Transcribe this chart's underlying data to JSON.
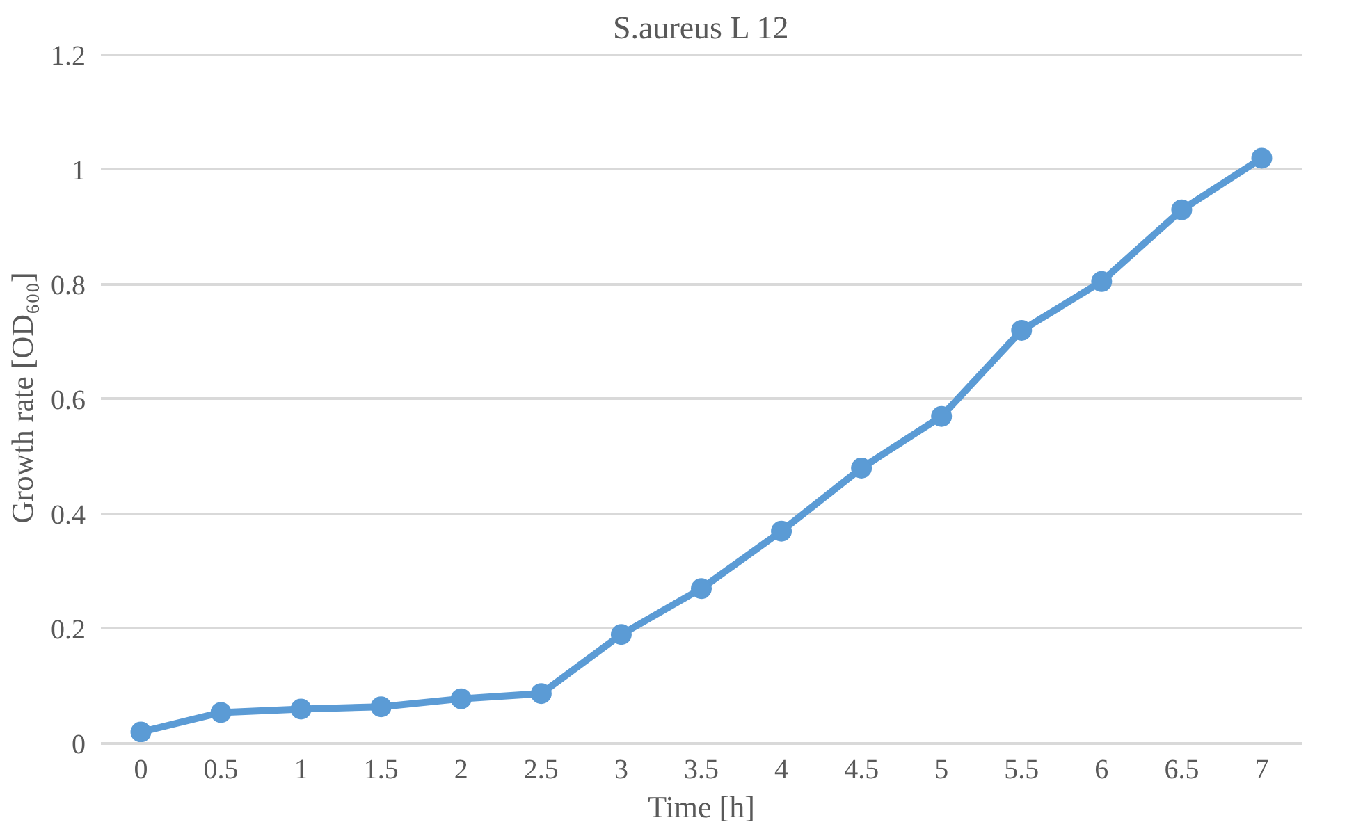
{
  "chart_data": {
    "type": "line",
    "title": "S.aureus L 12",
    "xlabel": "Time [h]",
    "ylabel": "Growth rate [OD₆₀₀]",
    "categories": [
      "0",
      "0.5",
      "1",
      "1.5",
      "2",
      "2.5",
      "3",
      "3.5",
      "4",
      "4.5",
      "5",
      "5.5",
      "6",
      "6.5",
      "7"
    ],
    "series": [
      {
        "color": "#5b9bd5",
        "values": [
          0.02,
          0.054,
          0.06,
          0.064,
          0.078,
          0.087,
          0.19,
          0.27,
          0.37,
          0.48,
          0.57,
          0.72,
          0.805,
          0.93,
          1.02
        ]
      }
    ],
    "ylim": [
      0,
      1.2
    ],
    "yticks": [
      0,
      0.2,
      0.4,
      0.6,
      0.8,
      1,
      1.2
    ],
    "grid": "y",
    "marker": "circle",
    "line_style": "solid"
  }
}
